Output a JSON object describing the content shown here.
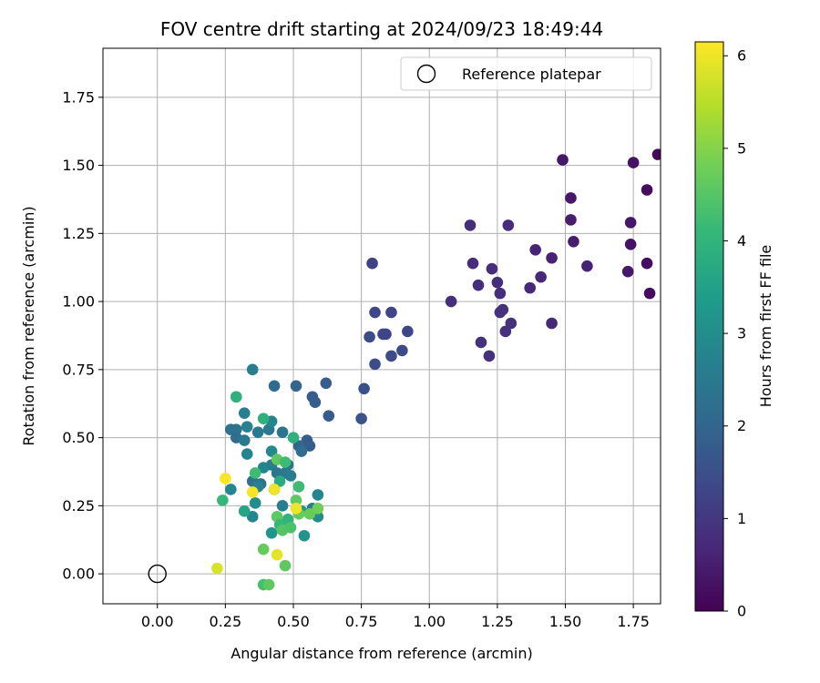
{
  "chart_data": {
    "type": "scatter",
    "title": "FOV centre drift starting at 2024/09/23 18:49:44",
    "xlabel": "Angular distance from reference (arcmin)",
    "ylabel": "Rotation from reference (arcmin)",
    "xlim": [
      -0.2,
      1.85
    ],
    "ylim": [
      -0.11,
      1.93
    ],
    "xticks": [
      "0.00",
      "0.25",
      "0.50",
      "0.75",
      "1.00",
      "1.25",
      "1.50",
      "1.75"
    ],
    "xtick_values": [
      0,
      0.25,
      0.5,
      0.75,
      1.0,
      1.25,
      1.5,
      1.75
    ],
    "yticks": [
      "0.00",
      "0.25",
      "0.50",
      "0.75",
      "1.00",
      "1.25",
      "1.50",
      "1.75"
    ],
    "ytick_values": [
      0,
      0.25,
      0.5,
      0.75,
      1.0,
      1.25,
      1.5,
      1.75
    ],
    "grid": true,
    "colormap": "viridis",
    "colorbar": {
      "label": "Hours from first FF file",
      "range": [
        0,
        6.15
      ],
      "ticks": [
        "0",
        "1",
        "2",
        "3",
        "4",
        "5",
        "6"
      ],
      "tick_values": [
        0,
        1,
        2,
        3,
        4,
        5,
        6
      ]
    },
    "legend": {
      "position": "top-right",
      "entries": [
        "Reference platepar"
      ]
    },
    "reference_point": {
      "x": 0.0,
      "y": 0.0
    },
    "points": [
      {
        "x": 1.49,
        "y": 1.52,
        "h": 0.4
      },
      {
        "x": 1.75,
        "y": 1.51,
        "h": 0.3
      },
      {
        "x": 1.84,
        "y": 1.54,
        "h": 0.1
      },
      {
        "x": 1.52,
        "y": 1.38,
        "h": 0.4
      },
      {
        "x": 1.8,
        "y": 1.41,
        "h": 0.2
      },
      {
        "x": 1.52,
        "y": 1.3,
        "h": 0.5
      },
      {
        "x": 1.74,
        "y": 1.29,
        "h": 0.4
      },
      {
        "x": 1.53,
        "y": 1.22,
        "h": 0.5
      },
      {
        "x": 1.74,
        "y": 1.21,
        "h": 0.3
      },
      {
        "x": 1.8,
        "y": 1.14,
        "h": 0.2
      },
      {
        "x": 1.58,
        "y": 1.13,
        "h": 0.6
      },
      {
        "x": 1.73,
        "y": 1.11,
        "h": 0.4
      },
      {
        "x": 1.81,
        "y": 1.03,
        "h": 0.2
      },
      {
        "x": 1.45,
        "y": 1.16,
        "h": 0.6
      },
      {
        "x": 1.39,
        "y": 1.19,
        "h": 0.6
      },
      {
        "x": 1.41,
        "y": 1.09,
        "h": 0.7
      },
      {
        "x": 1.37,
        "y": 1.05,
        "h": 0.7
      },
      {
        "x": 1.45,
        "y": 0.92,
        "h": 0.7
      },
      {
        "x": 1.29,
        "y": 1.28,
        "h": 0.8
      },
      {
        "x": 1.15,
        "y": 1.28,
        "h": 0.8
      },
      {
        "x": 1.16,
        "y": 1.14,
        "h": 0.8
      },
      {
        "x": 1.23,
        "y": 1.12,
        "h": 0.8
      },
      {
        "x": 1.25,
        "y": 1.07,
        "h": 0.8
      },
      {
        "x": 1.18,
        "y": 1.06,
        "h": 0.8
      },
      {
        "x": 1.26,
        "y": 1.03,
        "h": 0.8
      },
      {
        "x": 1.08,
        "y": 1.0,
        "h": 0.8
      },
      {
        "x": 1.26,
        "y": 0.96,
        "h": 0.9
      },
      {
        "x": 1.27,
        "y": 0.97,
        "h": 0.9
      },
      {
        "x": 1.3,
        "y": 0.92,
        "h": 0.9
      },
      {
        "x": 1.28,
        "y": 0.89,
        "h": 0.9
      },
      {
        "x": 1.19,
        "y": 0.85,
        "h": 0.9
      },
      {
        "x": 1.22,
        "y": 0.8,
        "h": 0.9
      },
      {
        "x": 0.79,
        "y": 1.14,
        "h": 1.2
      },
      {
        "x": 0.8,
        "y": 0.96,
        "h": 1.3
      },
      {
        "x": 0.86,
        "y": 0.96,
        "h": 1.3
      },
      {
        "x": 0.92,
        "y": 0.89,
        "h": 1.3
      },
      {
        "x": 0.83,
        "y": 0.88,
        "h": 1.3
      },
      {
        "x": 0.84,
        "y": 0.88,
        "h": 1.3
      },
      {
        "x": 0.78,
        "y": 0.87,
        "h": 1.4
      },
      {
        "x": 0.9,
        "y": 0.82,
        "h": 1.4
      },
      {
        "x": 0.86,
        "y": 0.8,
        "h": 1.4
      },
      {
        "x": 0.8,
        "y": 0.77,
        "h": 1.4
      },
      {
        "x": 0.76,
        "y": 0.68,
        "h": 1.5
      },
      {
        "x": 0.75,
        "y": 0.57,
        "h": 1.6
      },
      {
        "x": 0.62,
        "y": 0.7,
        "h": 1.8
      },
      {
        "x": 0.57,
        "y": 0.65,
        "h": 1.8
      },
      {
        "x": 0.58,
        "y": 0.63,
        "h": 1.8
      },
      {
        "x": 0.63,
        "y": 0.58,
        "h": 1.8
      },
      {
        "x": 0.55,
        "y": 0.49,
        "h": 1.8
      },
      {
        "x": 0.56,
        "y": 0.47,
        "h": 1.8
      },
      {
        "x": 0.51,
        "y": 0.69,
        "h": 2.0
      },
      {
        "x": 0.43,
        "y": 0.69,
        "h": 2.1
      },
      {
        "x": 0.52,
        "y": 0.47,
        "h": 2.0
      },
      {
        "x": 0.53,
        "y": 0.45,
        "h": 2.2
      },
      {
        "x": 0.35,
        "y": 0.75,
        "h": 2.6
      },
      {
        "x": 0.27,
        "y": 0.53,
        "h": 2.3
      },
      {
        "x": 0.29,
        "y": 0.53,
        "h": 2.3
      },
      {
        "x": 0.29,
        "y": 0.5,
        "h": 2.2
      },
      {
        "x": 0.32,
        "y": 0.49,
        "h": 2.5
      },
      {
        "x": 0.37,
        "y": 0.52,
        "h": 2.5
      },
      {
        "x": 0.32,
        "y": 0.59,
        "h": 2.6
      },
      {
        "x": 0.33,
        "y": 0.54,
        "h": 2.7
      },
      {
        "x": 0.41,
        "y": 0.53,
        "h": 2.5
      },
      {
        "x": 0.42,
        "y": 0.56,
        "h": 2.8
      },
      {
        "x": 0.46,
        "y": 0.52,
        "h": 2.4
      },
      {
        "x": 0.33,
        "y": 0.44,
        "h": 2.8
      },
      {
        "x": 0.42,
        "y": 0.45,
        "h": 2.9
      },
      {
        "x": 0.38,
        "y": 0.33,
        "h": 2.3
      },
      {
        "x": 0.39,
        "y": 0.39,
        "h": 2.8
      },
      {
        "x": 0.42,
        "y": 0.4,
        "h": 2.6
      },
      {
        "x": 0.44,
        "y": 0.37,
        "h": 2.4
      },
      {
        "x": 0.48,
        "y": 0.4,
        "h": 2.4
      },
      {
        "x": 0.47,
        "y": 0.37,
        "h": 2.5
      },
      {
        "x": 0.49,
        "y": 0.36,
        "h": 2.6
      },
      {
        "x": 0.43,
        "y": 0.31,
        "h": 2.1
      },
      {
        "x": 0.46,
        "y": 0.25,
        "h": 2.6
      },
      {
        "x": 0.35,
        "y": 0.34,
        "h": 2.3
      },
      {
        "x": 0.37,
        "y": 0.32,
        "h": 2.7
      },
      {
        "x": 0.36,
        "y": 0.26,
        "h": 3.0
      },
      {
        "x": 0.59,
        "y": 0.29,
        "h": 2.8
      },
      {
        "x": 0.57,
        "y": 0.24,
        "h": 2.6
      },
      {
        "x": 0.59,
        "y": 0.21,
        "h": 3.0
      },
      {
        "x": 0.53,
        "y": 0.23,
        "h": 3.2
      },
      {
        "x": 0.35,
        "y": 0.21,
        "h": 2.8
      },
      {
        "x": 0.42,
        "y": 0.15,
        "h": 3.2
      },
      {
        "x": 0.54,
        "y": 0.14,
        "h": 3.2
      },
      {
        "x": 0.27,
        "y": 0.31,
        "h": 2.8
      },
      {
        "x": 0.32,
        "y": 0.23,
        "h": 3.6
      },
      {
        "x": 0.24,
        "y": 0.27,
        "h": 4.1
      },
      {
        "x": 0.39,
        "y": 0.57,
        "h": 3.9
      },
      {
        "x": 0.5,
        "y": 0.5,
        "h": 3.9
      },
      {
        "x": 0.29,
        "y": 0.65,
        "h": 4.5
      },
      {
        "x": 0.29,
        "y": 0.65,
        "h": 3.9
      },
      {
        "x": 0.36,
        "y": 0.37,
        "h": 4.2
      },
      {
        "x": 0.44,
        "y": 0.42,
        "h": 4.6
      },
      {
        "x": 0.47,
        "y": 0.41,
        "h": 4.2
      },
      {
        "x": 0.45,
        "y": 0.34,
        "h": 3.8
      },
      {
        "x": 0.52,
        "y": 0.32,
        "h": 4.2
      },
      {
        "x": 0.51,
        "y": 0.27,
        "h": 4.6
      },
      {
        "x": 0.48,
        "y": 0.2,
        "h": 4.0
      },
      {
        "x": 0.44,
        "y": 0.21,
        "h": 4.6
      },
      {
        "x": 0.45,
        "y": 0.18,
        "h": 4.1
      },
      {
        "x": 0.46,
        "y": 0.16,
        "h": 4.5
      },
      {
        "x": 0.49,
        "y": 0.17,
        "h": 4.4
      },
      {
        "x": 0.52,
        "y": 0.22,
        "h": 4.7
      },
      {
        "x": 0.56,
        "y": 0.22,
        "h": 4.7
      },
      {
        "x": 0.59,
        "y": 0.24,
        "h": 4.8
      },
      {
        "x": 0.39,
        "y": 0.09,
        "h": 4.7
      },
      {
        "x": 0.47,
        "y": 0.03,
        "h": 4.6
      },
      {
        "x": 0.39,
        "y": -0.04,
        "h": 4.3
      },
      {
        "x": 0.41,
        "y": -0.04,
        "h": 4.6
      },
      {
        "x": 0.44,
        "y": 0.07,
        "h": 5.9
      },
      {
        "x": 0.51,
        "y": 0.24,
        "h": 6.0
      },
      {
        "x": 0.25,
        "y": 0.35,
        "h": 6.1
      },
      {
        "x": 0.35,
        "y": 0.3,
        "h": 6.1
      },
      {
        "x": 0.43,
        "y": 0.31,
        "h": 6.0
      },
      {
        "x": 0.22,
        "y": 0.02,
        "h": 5.8
      }
    ]
  },
  "colors": {
    "viridis_stops": [
      "#440154",
      "#482878",
      "#3e4989",
      "#31688e",
      "#26828e",
      "#1f9e89",
      "#35b779",
      "#6ece58",
      "#b5de2b",
      "#fde725"
    ]
  }
}
